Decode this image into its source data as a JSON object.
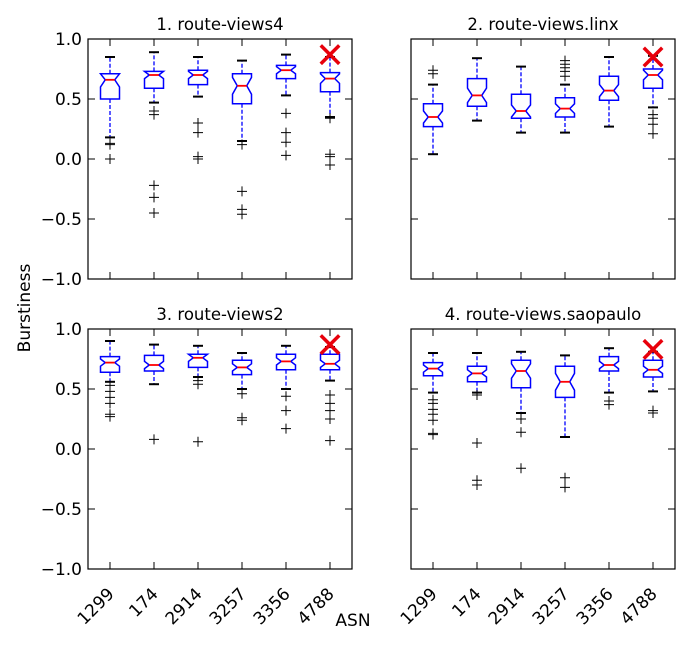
{
  "chart_data": {
    "type": "box",
    "ylabel": "Burstiness",
    "xlabel": "ASN",
    "categories": [
      "1299",
      "174",
      "2914",
      "3257",
      "3356",
      "4788"
    ],
    "ylim": [
      -1.0,
      1.0
    ],
    "yticks": [
      1.0,
      0.5,
      0.0,
      -0.5,
      -1.0
    ],
    "ytick_labels": [
      "1.0",
      "0.5",
      "0.0",
      "−0.5",
      "−1.0"
    ],
    "marker": {
      "symbol": "x",
      "color": "#e8000b",
      "category": "4788"
    },
    "colors": {
      "box": "#0000ff",
      "median": "#ff0000",
      "whisker": "#0000ff",
      "cap": "#000000",
      "flier": "#000000"
    },
    "panels": [
      {
        "title": "1. route-views4",
        "boxes": [
          {
            "q1": 0.5,
            "q3": 0.71,
            "median": 0.66,
            "wlo": 0.18,
            "whi": 0.85,
            "notch": 0.06,
            "fliers": [
              0.13,
              0.12,
              0.0
            ]
          },
          {
            "q1": 0.59,
            "q3": 0.73,
            "median": 0.7,
            "wlo": 0.47,
            "whi": 0.89,
            "notch": 0.03,
            "fliers": [
              0.4,
              0.37,
              -0.22,
              -0.32,
              -0.45
            ]
          },
          {
            "q1": 0.62,
            "q3": 0.74,
            "median": 0.7,
            "wlo": 0.52,
            "whi": 0.85,
            "notch": 0.03,
            "fliers": [
              0.3,
              0.22,
              0.02,
              0.0
            ]
          },
          {
            "q1": 0.46,
            "q3": 0.71,
            "median": 0.61,
            "wlo": 0.15,
            "whi": 0.82,
            "notch": 0.07,
            "fliers": [
              0.12,
              -0.27,
              -0.42,
              -0.46
            ]
          },
          {
            "q1": 0.67,
            "q3": 0.78,
            "median": 0.74,
            "wlo": 0.53,
            "whi": 0.87,
            "notch": 0.03,
            "fliers": [
              0.38,
              0.22,
              0.14,
              0.03
            ]
          },
          {
            "q1": 0.56,
            "q3": 0.72,
            "median": 0.67,
            "wlo": 0.35,
            "whi": 0.85,
            "notch": 0.04,
            "fliers": [
              0.34,
              0.04,
              0.02,
              -0.05
            ]
          }
        ],
        "marker_y": 0.87
      },
      {
        "title": "2. route-views.linx",
        "boxes": [
          {
            "q1": 0.27,
            "q3": 0.46,
            "median": 0.35,
            "wlo": 0.04,
            "whi": 0.62,
            "notch": 0.05,
            "fliers": [
              0.74,
              0.71
            ]
          },
          {
            "q1": 0.44,
            "q3": 0.67,
            "median": 0.53,
            "wlo": 0.32,
            "whi": 0.84,
            "notch": 0.06,
            "fliers": []
          },
          {
            "q1": 0.34,
            "q3": 0.54,
            "median": 0.4,
            "wlo": 0.22,
            "whi": 0.77,
            "notch": 0.05,
            "fliers": []
          },
          {
            "q1": 0.35,
            "q3": 0.51,
            "median": 0.42,
            "wlo": 0.22,
            "whi": 0.62,
            "notch": 0.04,
            "fliers": [
              0.82,
              0.79,
              0.76,
              0.73,
              0.69
            ]
          },
          {
            "q1": 0.49,
            "q3": 0.69,
            "median": 0.57,
            "wlo": 0.27,
            "whi": 0.85,
            "notch": 0.05,
            "fliers": []
          },
          {
            "q1": 0.59,
            "q3": 0.75,
            "median": 0.7,
            "wlo": 0.43,
            "whi": 0.86,
            "notch": 0.04,
            "fliers": [
              0.37,
              0.34,
              0.29,
              0.21
            ]
          }
        ],
        "marker_y": 0.85
      },
      {
        "title": "3. route-views2",
        "boxes": [
          {
            "q1": 0.64,
            "q3": 0.77,
            "median": 0.72,
            "wlo": 0.56,
            "whi": 0.9,
            "notch": 0.03,
            "fliers": [
              0.53,
              0.48,
              0.43,
              0.38,
              0.29,
              0.27
            ]
          },
          {
            "q1": 0.65,
            "q3": 0.78,
            "median": 0.7,
            "wlo": 0.54,
            "whi": 0.87,
            "notch": 0.03,
            "fliers": [
              0.08
            ]
          },
          {
            "q1": 0.68,
            "q3": 0.79,
            "median": 0.76,
            "wlo": 0.6,
            "whi": 0.86,
            "notch": 0.03,
            "fliers": [
              0.57,
              0.54,
              0.06
            ]
          },
          {
            "q1": 0.62,
            "q3": 0.74,
            "median": 0.68,
            "wlo": 0.5,
            "whi": 0.8,
            "notch": 0.03,
            "fliers": [
              0.46,
              0.26,
              0.24
            ]
          },
          {
            "q1": 0.66,
            "q3": 0.79,
            "median": 0.73,
            "wlo": 0.5,
            "whi": 0.86,
            "notch": 0.03,
            "fliers": [
              0.44,
              0.32,
              0.17
            ]
          },
          {
            "q1": 0.66,
            "q3": 0.79,
            "median": 0.71,
            "wlo": 0.57,
            "whi": 0.85,
            "notch": 0.03,
            "fliers": [
              0.45,
              0.38,
              0.32,
              0.25,
              0.07
            ]
          }
        ],
        "marker_y": 0.87
      },
      {
        "title": "4. route-views.saopaulo",
        "boxes": [
          {
            "q1": 0.61,
            "q3": 0.72,
            "median": 0.67,
            "wlo": 0.47,
            "whi": 0.8,
            "notch": 0.03,
            "fliers": [
              0.41,
              0.38,
              0.33,
              0.29,
              0.24,
              0.13,
              0.12
            ]
          },
          {
            "q1": 0.56,
            "q3": 0.69,
            "median": 0.63,
            "wlo": 0.47,
            "whi": 0.8,
            "notch": 0.03,
            "fliers": [
              0.45,
              0.05,
              -0.26,
              -0.3
            ]
          },
          {
            "q1": 0.51,
            "q3": 0.74,
            "median": 0.65,
            "wlo": 0.3,
            "whi": 0.81,
            "notch": 0.06,
            "fliers": [
              0.25,
              0.14,
              -0.16
            ]
          },
          {
            "q1": 0.43,
            "q3": 0.69,
            "median": 0.56,
            "wlo": 0.1,
            "whi": 0.78,
            "notch": 0.07,
            "fliers": [
              -0.24,
              -0.32
            ]
          },
          {
            "q1": 0.65,
            "q3": 0.77,
            "median": 0.7,
            "wlo": 0.47,
            "whi": 0.84,
            "notch": 0.03,
            "fliers": [
              0.4,
              0.37
            ]
          },
          {
            "q1": 0.6,
            "q3": 0.74,
            "median": 0.66,
            "wlo": 0.48,
            "whi": 0.81,
            "notch": 0.03,
            "fliers": [
              0.32,
              0.3
            ]
          }
        ],
        "marker_y": 0.83
      }
    ]
  }
}
